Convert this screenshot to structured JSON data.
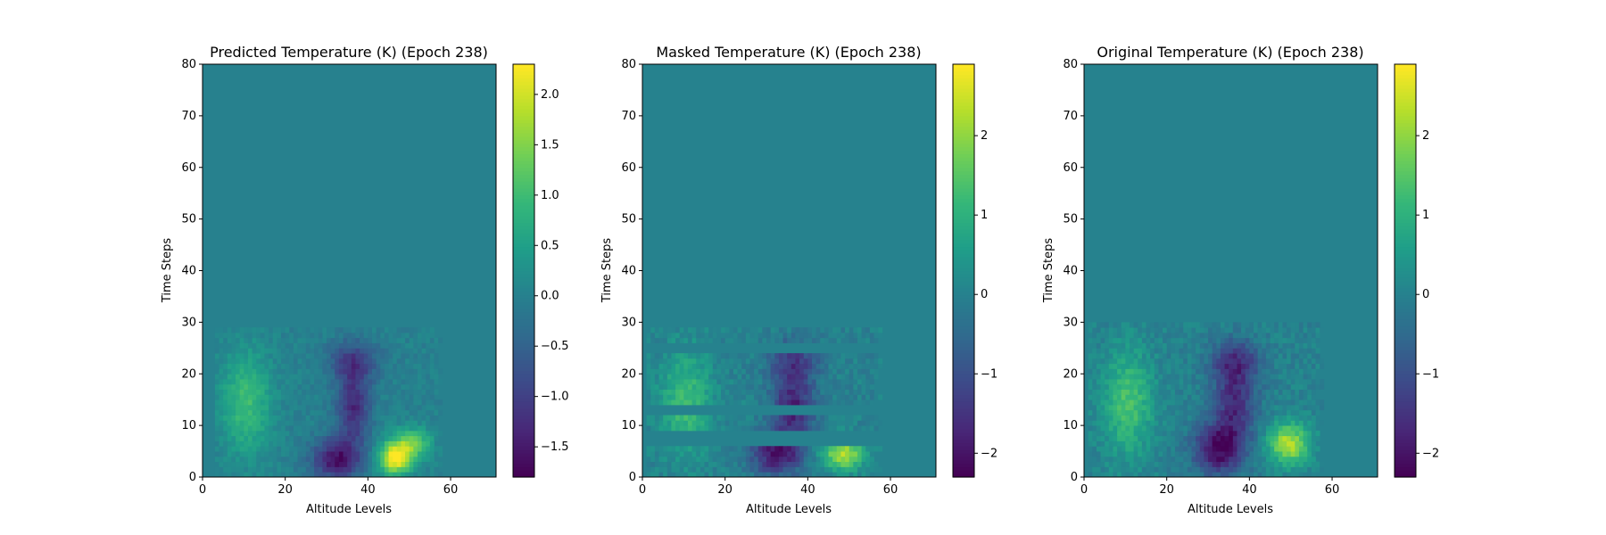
{
  "chart_data": [
    {
      "type": "heatmap",
      "title": "Predicted Temperature (K) (Epoch 238)",
      "xlabel": "Altitude Levels",
      "ylabel": "Time Steps",
      "xlim": [
        0,
        71
      ],
      "ylim": [
        0,
        80
      ],
      "xticks": [
        0,
        20,
        40,
        60
      ],
      "yticks": [
        0,
        10,
        20,
        30,
        40,
        50,
        60,
        70,
        80
      ],
      "data_extent": {
        "x": [
          3,
          58
        ],
        "y": [
          0,
          29
        ]
      },
      "colormap": "viridis",
      "colorbar": {
        "min": -1.8,
        "max": 2.3,
        "ticks": [
          -1.5,
          -1.0,
          -0.5,
          0.0,
          0.5,
          1.0,
          1.5,
          2.0
        ],
        "tick_labels": [
          "−1.5",
          "−1.0",
          "−0.5",
          "0.0",
          "0.5",
          "1.0",
          "1.5",
          "2.0"
        ]
      },
      "background_value": 0.0,
      "features": [
        {
          "x": 10,
          "y": 14,
          "value": 1.0,
          "sx": 6,
          "sy": 10
        },
        {
          "x": 32,
          "y": 3,
          "value": -1.6,
          "sx": 6,
          "sy": 4
        },
        {
          "x": 36,
          "y": 13,
          "value": -1.3,
          "sx": 4,
          "sy": 7
        },
        {
          "x": 36,
          "y": 22,
          "value": -1.0,
          "sx": 6,
          "sy": 4
        },
        {
          "x": 46,
          "y": 3,
          "value": 2.2,
          "sx": 4,
          "sy": 3
        },
        {
          "x": 50,
          "y": 6,
          "value": 1.3,
          "sx": 5,
          "sy": 3
        }
      ],
      "masked_rows": []
    },
    {
      "type": "heatmap",
      "title": "Masked Temperature (K) (Epoch 238)",
      "xlabel": "Altitude Levels",
      "ylabel": "Time Steps",
      "xlim": [
        0,
        71
      ],
      "ylim": [
        0,
        80
      ],
      "xticks": [
        0,
        20,
        40,
        60
      ],
      "yticks": [
        0,
        10,
        20,
        30,
        40,
        50,
        60,
        70,
        80
      ],
      "data_extent": {
        "x": [
          1,
          58
        ],
        "y": [
          0,
          29
        ]
      },
      "colormap": "viridis",
      "colorbar": {
        "min": -2.3,
        "max": 2.9,
        "ticks": [
          -2,
          -1,
          0,
          1,
          2
        ],
        "tick_labels": [
          "−2",
          "−1",
          "0",
          "1",
          "2"
        ]
      },
      "background_value": 0.0,
      "features": [
        {
          "x": 10,
          "y": 14,
          "value": 1.3,
          "sx": 6,
          "sy": 10
        },
        {
          "x": 32,
          "y": 4,
          "value": -2.0,
          "sx": 6,
          "sy": 4
        },
        {
          "x": 36,
          "y": 13,
          "value": -1.8,
          "sx": 5,
          "sy": 7
        },
        {
          "x": 36,
          "y": 22,
          "value": -1.2,
          "sx": 6,
          "sy": 4
        },
        {
          "x": 48,
          "y": 4,
          "value": 2.3,
          "sx": 5,
          "sy": 3
        }
      ],
      "masked_rows": [
        6,
        7,
        8,
        12,
        13,
        24,
        25
      ]
    },
    {
      "type": "heatmap",
      "title": "Original Temperature (K) (Epoch 238)",
      "xlabel": "Altitude Levels",
      "ylabel": "Time Steps",
      "xlim": [
        0,
        71
      ],
      "ylim": [
        0,
        80
      ],
      "xticks": [
        0,
        20,
        40,
        60
      ],
      "yticks": [
        0,
        10,
        20,
        30,
        40,
        50,
        60,
        70,
        80
      ],
      "data_extent": {
        "x": [
          1,
          58
        ],
        "y": [
          0,
          30
        ]
      },
      "colormap": "viridis",
      "colorbar": {
        "min": -2.3,
        "max": 2.9,
        "ticks": [
          -2,
          -1,
          0,
          1,
          2
        ],
        "tick_labels": [
          "−2",
          "−1",
          "0",
          "1",
          "2"
        ]
      },
      "background_value": 0.0,
      "features": [
        {
          "x": 10,
          "y": 14,
          "value": 1.4,
          "sx": 6,
          "sy": 10
        },
        {
          "x": 32,
          "y": 5,
          "value": -2.1,
          "sx": 6,
          "sy": 5
        },
        {
          "x": 36,
          "y": 14,
          "value": -1.6,
          "sx": 5,
          "sy": 8
        },
        {
          "x": 36,
          "y": 22,
          "value": -1.2,
          "sx": 6,
          "sy": 4
        },
        {
          "x": 49,
          "y": 6,
          "value": 2.3,
          "sx": 5,
          "sy": 4
        }
      ],
      "masked_rows": []
    }
  ]
}
